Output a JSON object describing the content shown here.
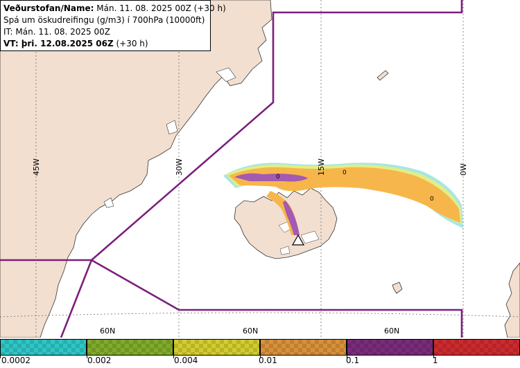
{
  "info": {
    "line1_bold": "Veðurstofan/Name:",
    "line1_rest": " Mán. 11. 08. 2025 00Z (+30 h)",
    "line2": "Spá um öskudreifingu (g/m3) í 700hPa (10000ft)",
    "line3": "IT: Mán. 11. 08. 2025 00Z",
    "line4_bold": "VT: þri. 12.08.2025 06Z",
    "line4_rest": " (+30 h)"
  },
  "map": {
    "meridian_labels": [
      "45W",
      "30W",
      "15W",
      "0W"
    ],
    "parallel_labels": [
      "60N",
      "60N",
      "60N"
    ],
    "contour_labels": [
      "0",
      "0",
      "0"
    ],
    "colors": {
      "land": "#f2dfd0",
      "sea": "#ffffff",
      "boundary": "#7b1f7b",
      "grid": "#6e6e6e",
      "ash_low": "#f7b64b",
      "ash_high": "#a35ab0",
      "ash_trace": "#9fe3e0",
      "ash_trace2": "#e8ee7a"
    },
    "volcano_icon": "volcano-triangle-icon"
  },
  "legend": {
    "ticks": [
      "0.0002",
      "0.002",
      "0.004",
      "0.01",
      "0.1",
      "1"
    ],
    "colors": [
      "#2ec5c5",
      "#7faa2a",
      "#d2cc2e",
      "#d8903a",
      "#7a2b7a",
      "#cc2a2e"
    ]
  }
}
